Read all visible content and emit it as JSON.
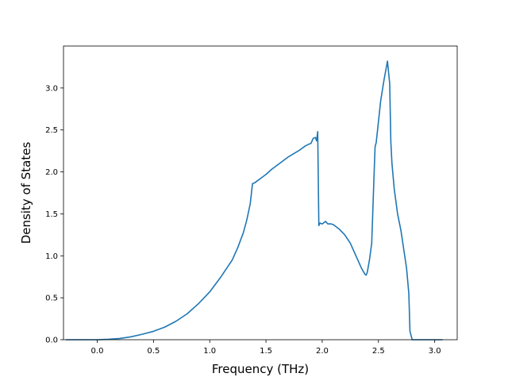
{
  "chart_data": {
    "type": "line",
    "title": "",
    "xlabel": "Frequency (THz)",
    "ylabel": "Density of States",
    "xlim": [
      -0.3,
      3.2
    ],
    "ylim": [
      0.0,
      3.5
    ],
    "xticks": [
      0.0,
      0.5,
      1.0,
      1.5,
      2.0,
      2.5,
      3.0
    ],
    "xtick_labels": [
      "0.0",
      "0.5",
      "1.0",
      "1.5",
      "2.0",
      "2.5",
      "3.0"
    ],
    "yticks": [
      0.0,
      0.5,
      1.0,
      1.5,
      2.0,
      2.5,
      3.0
    ],
    "ytick_labels": [
      "0.0",
      "0.5",
      "1.0",
      "1.5",
      "2.0",
      "2.5",
      "3.0"
    ],
    "grid": false,
    "legend": "none",
    "series": [
      {
        "color": "#1f77b4",
        "x": [
          -0.28,
          0.0,
          0.1,
          0.2,
          0.3,
          0.4,
          0.5,
          0.6,
          0.7,
          0.8,
          0.9,
          1.0,
          1.1,
          1.2,
          1.25,
          1.3,
          1.33,
          1.36,
          1.38,
          1.4,
          1.42,
          1.45,
          1.5,
          1.55,
          1.6,
          1.7,
          1.8,
          1.85,
          1.88,
          1.9,
          1.92,
          1.94,
          1.95,
          1.96,
          1.97,
          1.98,
          2.0,
          2.03,
          2.05,
          2.08,
          2.1,
          2.15,
          2.2,
          2.25,
          2.3,
          2.35,
          2.38,
          2.39,
          2.4,
          2.42,
          2.44,
          2.46,
          2.47,
          2.48,
          2.5,
          2.52,
          2.55,
          2.58,
          2.6,
          2.61,
          2.62,
          2.64,
          2.67,
          2.7,
          2.75,
          2.77,
          2.78,
          2.8,
          2.9,
          3.07
        ],
        "y": [
          0.0,
          0.0,
          0.005,
          0.015,
          0.035,
          0.065,
          0.1,
          0.15,
          0.22,
          0.31,
          0.43,
          0.57,
          0.75,
          0.95,
          1.1,
          1.28,
          1.43,
          1.62,
          1.86,
          1.87,
          1.89,
          1.92,
          1.97,
          2.03,
          2.08,
          2.18,
          2.26,
          2.31,
          2.33,
          2.34,
          2.4,
          2.41,
          2.37,
          2.48,
          1.36,
          1.39,
          1.38,
          1.41,
          1.38,
          1.38,
          1.37,
          1.32,
          1.25,
          1.15,
          1.0,
          0.85,
          0.78,
          0.77,
          0.8,
          0.95,
          1.15,
          1.93,
          2.3,
          2.35,
          2.6,
          2.85,
          3.1,
          3.32,
          3.05,
          2.36,
          2.1,
          1.8,
          1.5,
          1.3,
          0.85,
          0.55,
          0.1,
          0.0,
          0.0,
          0.0
        ]
      }
    ]
  }
}
